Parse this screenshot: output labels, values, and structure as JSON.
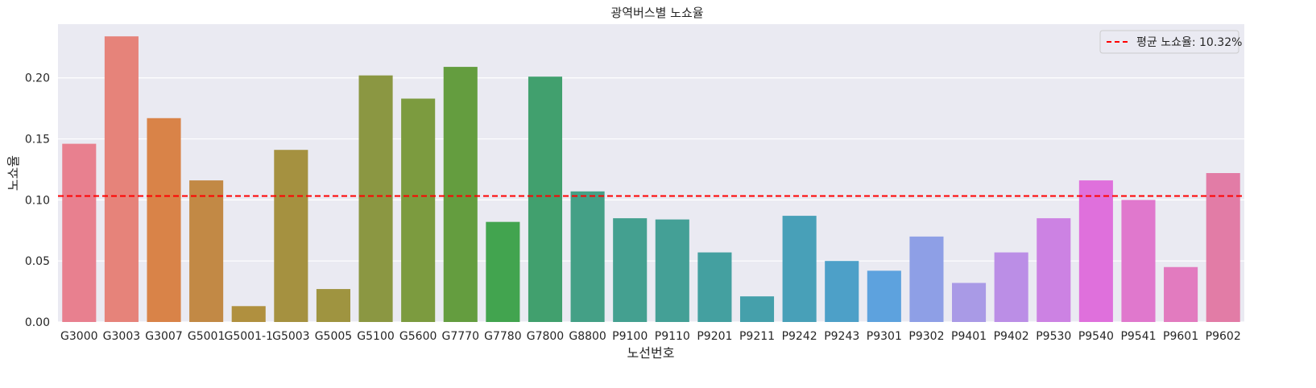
{
  "chart_data": {
    "type": "bar",
    "title": "광역버스별 노쇼율",
    "xlabel": "노선번호",
    "ylabel": "노쇼율",
    "categories": [
      "G3000",
      "G3003",
      "G3007",
      "G5001",
      "G5001-1",
      "G5003",
      "G5005",
      "G5100",
      "G5600",
      "G7770",
      "G7780",
      "G7800",
      "G8800",
      "P9100",
      "P9110",
      "P9201",
      "P9211",
      "P9242",
      "P9243",
      "P9301",
      "P9302",
      "P9401",
      "P9402",
      "P9530",
      "P9540",
      "P9541",
      "P9601",
      "P9602"
    ],
    "values": [
      0.146,
      0.234,
      0.167,
      0.116,
      0.013,
      0.141,
      0.027,
      0.202,
      0.183,
      0.209,
      0.082,
      0.201,
      0.107,
      0.085,
      0.084,
      0.057,
      0.021,
      0.087,
      0.05,
      0.042,
      0.07,
      0.032,
      0.057,
      0.085,
      0.116,
      0.1,
      0.045,
      0.122
    ],
    "colors": [
      "#e8808f",
      "#e6837a",
      "#d98348",
      "#c28945",
      "#b0903f",
      "#a59140",
      "#9f9440",
      "#8b9742",
      "#7c9b3f",
      "#649d3f",
      "#42a44f",
      "#41a06e",
      "#44a086",
      "#44a090",
      "#44a096",
      "#44a0a0",
      "#45a0ab",
      "#48a0b8",
      "#4da0c8",
      "#5da2de",
      "#8e9fe6",
      "#a99ae6",
      "#bb8ee6",
      "#cc82e3",
      "#df70dc",
      "#e078cd",
      "#e27bbf",
      "#e27ca6"
    ],
    "ylim": [
      0,
      0.244
    ],
    "yticks": [
      "0.00",
      "0.05",
      "0.10",
      "0.15",
      "0.20"
    ],
    "ytick_values": [
      0,
      0.05,
      0.1,
      0.15,
      0.2
    ],
    "mean_line": {
      "value": 0.1032,
      "label": "평균 노쇼율: 10.32%",
      "color": "#ff0000",
      "style": "dashed"
    },
    "legend_position": "top-right",
    "grid": true,
    "background": "#eaeaf2"
  }
}
